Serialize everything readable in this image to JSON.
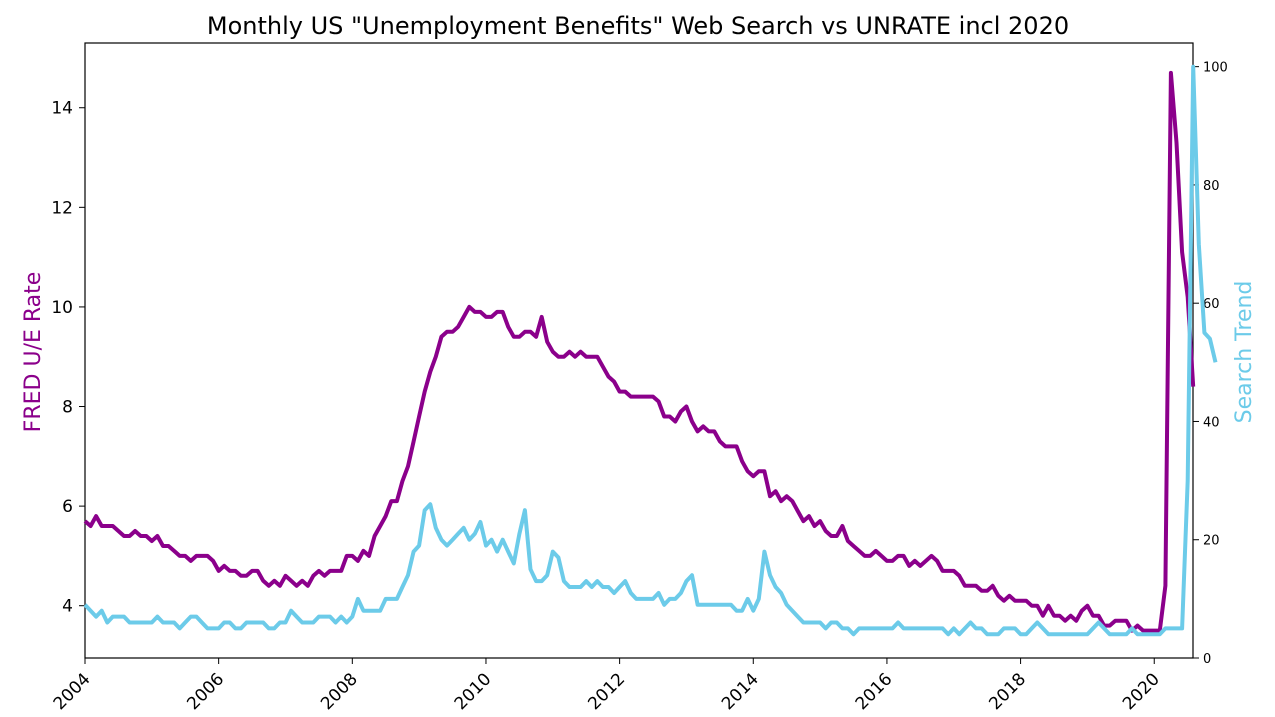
{
  "chart_data": {
    "type": "line",
    "title": "Monthly US \"Unemployment Benefits\" Web Search vs UNRATE incl 2020",
    "ylabel_left": "FRED U/E Rate",
    "ylabel_right": "Search Trend",
    "xlim": [
      2004.0,
      2020.58
    ],
    "ylim_left": [
      2.95,
      15.3
    ],
    "ylim_right": [
      0,
      104
    ],
    "x_ticks": [
      2004,
      2006,
      2008,
      2010,
      2012,
      2014,
      2016,
      2018,
      2020
    ],
    "y_ticks_left": [
      4,
      6,
      8,
      10,
      12,
      14
    ],
    "y_ticks_right": [
      0,
      20,
      40,
      60,
      80,
      100
    ],
    "grid": false,
    "colors": {
      "unrate": "#8b008b",
      "search": "#6ccbe9"
    },
    "series": [
      {
        "name": "FRED U/E Rate",
        "axis": "left",
        "start": "2004-01",
        "values": [
          5.7,
          5.6,
          5.8,
          5.6,
          5.6,
          5.6,
          5.5,
          5.4,
          5.4,
          5.5,
          5.4,
          5.4,
          5.3,
          5.4,
          5.2,
          5.2,
          5.1,
          5.0,
          5.0,
          4.9,
          5.0,
          5.0,
          5.0,
          4.9,
          4.7,
          4.8,
          4.7,
          4.7,
          4.6,
          4.6,
          4.7,
          4.7,
          4.5,
          4.4,
          4.5,
          4.4,
          4.6,
          4.5,
          4.4,
          4.5,
          4.4,
          4.6,
          4.7,
          4.6,
          4.7,
          4.7,
          4.7,
          5.0,
          5.0,
          4.9,
          5.1,
          5.0,
          5.4,
          5.6,
          5.8,
          6.1,
          6.1,
          6.5,
          6.8,
          7.3,
          7.8,
          8.3,
          8.7,
          9.0,
          9.4,
          9.5,
          9.5,
          9.6,
          9.8,
          10.0,
          9.9,
          9.9,
          9.8,
          9.8,
          9.9,
          9.9,
          9.6,
          9.4,
          9.4,
          9.5,
          9.5,
          9.4,
          9.8,
          9.3,
          9.1,
          9.0,
          9.0,
          9.1,
          9.0,
          9.1,
          9.0,
          9.0,
          9.0,
          8.8,
          8.6,
          8.5,
          8.3,
          8.3,
          8.2,
          8.2,
          8.2,
          8.2,
          8.2,
          8.1,
          7.8,
          7.8,
          7.7,
          7.9,
          8.0,
          7.7,
          7.5,
          7.6,
          7.5,
          7.5,
          7.3,
          7.2,
          7.2,
          7.2,
          6.9,
          6.7,
          6.6,
          6.7,
          6.7,
          6.2,
          6.3,
          6.1,
          6.2,
          6.1,
          5.9,
          5.7,
          5.8,
          5.6,
          5.7,
          5.5,
          5.4,
          5.4,
          5.6,
          5.3,
          5.2,
          5.1,
          5.0,
          5.0,
          5.1,
          5.0,
          4.9,
          4.9,
          5.0,
          5.0,
          4.8,
          4.9,
          4.8,
          4.9,
          5.0,
          4.9,
          4.7,
          4.7,
          4.7,
          4.6,
          4.4,
          4.4,
          4.4,
          4.3,
          4.3,
          4.4,
          4.2,
          4.1,
          4.2,
          4.1,
          4.1,
          4.1,
          4.0,
          4.0,
          3.8,
          4.0,
          3.8,
          3.8,
          3.7,
          3.8,
          3.7,
          3.9,
          4.0,
          3.8,
          3.8,
          3.6,
          3.6,
          3.7,
          3.7,
          3.7,
          3.5,
          3.6,
          3.5,
          3.5,
          3.5,
          3.5,
          4.4,
          14.7,
          13.3,
          11.1,
          10.2,
          8.4
        ]
      },
      {
        "name": "Search Trend",
        "axis": "right",
        "start": "2004-01",
        "values": [
          9,
          8,
          7,
          8,
          6,
          7,
          7,
          7,
          6,
          6,
          6,
          6,
          6,
          7,
          6,
          6,
          6,
          5,
          6,
          7,
          7,
          6,
          5,
          5,
          5,
          6,
          6,
          5,
          5,
          6,
          6,
          6,
          6,
          5,
          5,
          6,
          6,
          8,
          7,
          6,
          6,
          6,
          7,
          7,
          7,
          6,
          7,
          6,
          7,
          10,
          8,
          8,
          8,
          8,
          10,
          10,
          10,
          12,
          14,
          18,
          19,
          25,
          26,
          22,
          20,
          19,
          20,
          21,
          22,
          20,
          21,
          23,
          19,
          20,
          18,
          20,
          18,
          16,
          21,
          25,
          15,
          13,
          13,
          14,
          18,
          17,
          13,
          12,
          12,
          12,
          13,
          12,
          13,
          12,
          12,
          11,
          12,
          13,
          11,
          10,
          10,
          10,
          10,
          11,
          9,
          10,
          10,
          11,
          13,
          14,
          9,
          9,
          9,
          9,
          9,
          9,
          9,
          8,
          8,
          10,
          8,
          10,
          18,
          14,
          12,
          11,
          9,
          8,
          7,
          6,
          6,
          6,
          6,
          5,
          6,
          6,
          5,
          5,
          4,
          5,
          5,
          5,
          5,
          5,
          5,
          5,
          6,
          5,
          5,
          5,
          5,
          5,
          5,
          5,
          5,
          4,
          5,
          4,
          5,
          6,
          5,
          5,
          4,
          4,
          4,
          5,
          5,
          5,
          4,
          4,
          5,
          6,
          5,
          4,
          4,
          4,
          4,
          4,
          4,
          4,
          4,
          5,
          6,
          5,
          4,
          4,
          4,
          4,
          5,
          4,
          4,
          4,
          4,
          4,
          5,
          5,
          5,
          5,
          30,
          100,
          70,
          55,
          54,
          50
        ]
      }
    ]
  }
}
